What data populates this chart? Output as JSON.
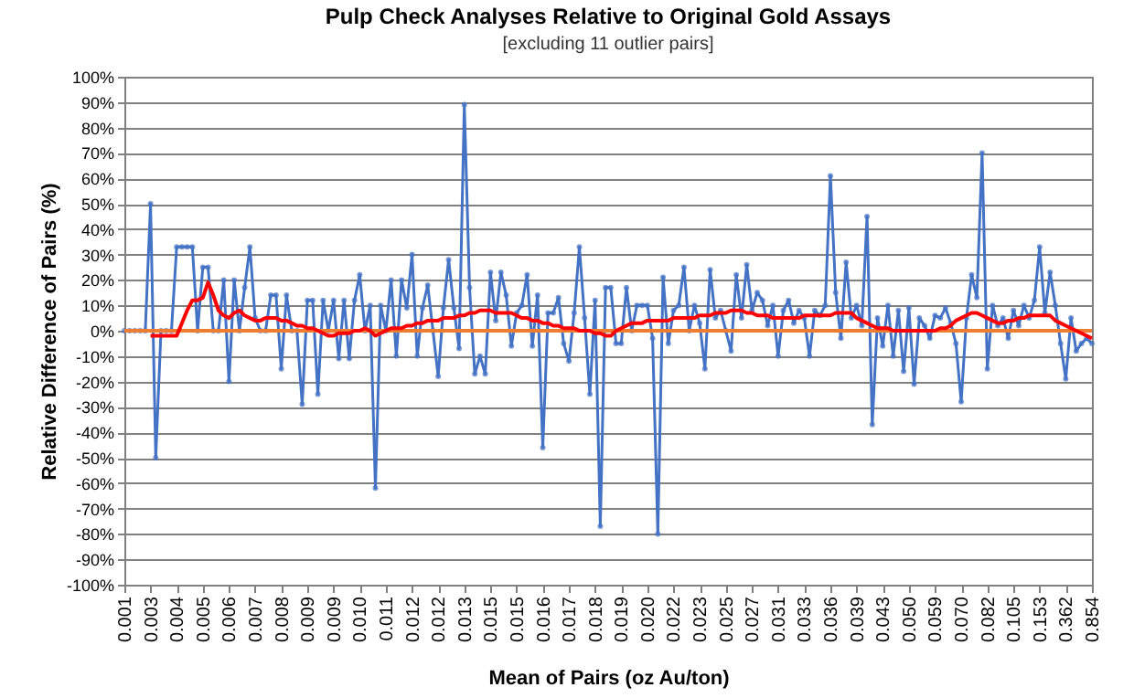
{
  "chart_data": {
    "type": "line",
    "title": "Pulp Check Analyses Relative to Original Gold Assays",
    "subtitle": "[excluding 11 outlier pairs]",
    "xlabel": "Mean of Pairs (oz Au/ton)",
    "ylabel": "Relative Difference of Pairs (%)",
    "categories": [
      "0.001",
      null,
      null,
      null,
      null,
      "0.003",
      null,
      null,
      null,
      null,
      "0.004",
      null,
      null,
      null,
      null,
      "0.005",
      null,
      null,
      null,
      null,
      "0.006",
      null,
      null,
      null,
      null,
      "0.007",
      null,
      null,
      null,
      null,
      "0.008",
      null,
      null,
      null,
      null,
      "0.009",
      null,
      null,
      null,
      null,
      "0.009",
      null,
      null,
      null,
      null,
      "0.010",
      null,
      null,
      null,
      null,
      "0.011",
      null,
      null,
      null,
      null,
      "0.012",
      null,
      null,
      null,
      null,
      "0.012",
      null,
      null,
      null,
      null,
      "0.013",
      null,
      null,
      null,
      null,
      "0.015",
      null,
      null,
      null,
      null,
      "0.015",
      null,
      null,
      null,
      null,
      "0.016",
      null,
      null,
      null,
      null,
      "0.017",
      null,
      null,
      null,
      null,
      "0.018",
      null,
      null,
      null,
      null,
      "0.019",
      null,
      null,
      null,
      null,
      "0.020",
      null,
      null,
      null,
      null,
      "0.022",
      null,
      null,
      null,
      null,
      "0.023",
      null,
      null,
      null,
      null,
      "0.025",
      null,
      null,
      null,
      null,
      "0.027",
      null,
      null,
      null,
      null,
      "0.031",
      null,
      null,
      null,
      null,
      "0.033",
      null,
      null,
      null,
      null,
      "0.036",
      null,
      null,
      null,
      null,
      "0.039",
      null,
      null,
      null,
      null,
      "0.043",
      null,
      null,
      null,
      null,
      "0.050",
      null,
      null,
      null,
      null,
      "0.059",
      null,
      null,
      null,
      null,
      "0.070",
      null,
      null,
      null,
      null,
      "0.082",
      null,
      null,
      null,
      null,
      "0.105",
      null,
      null,
      null,
      null,
      "0.153",
      null,
      null,
      null,
      null,
      "0.362",
      null,
      null,
      null,
      null,
      "0.854"
    ],
    "series": [
      {
        "color": "#4472c4",
        "values": [
          0,
          0,
          0,
          0,
          0,
          50,
          -50,
          0,
          0,
          0,
          33,
          33,
          33,
          33,
          0,
          25,
          25,
          0,
          0,
          20,
          -20,
          20,
          0,
          17,
          33,
          5,
          0,
          0,
          14,
          14,
          -15,
          14,
          0,
          0,
          -29,
          12,
          12,
          -25,
          12,
          0,
          12,
          -11,
          12,
          -11,
          12,
          22,
          0,
          10,
          -62,
          10,
          0,
          20,
          -10,
          20,
          9,
          30,
          -10,
          9,
          18,
          0,
          -18,
          9,
          28,
          9,
          -7,
          89,
          17,
          -17,
          -10,
          -17,
          23,
          4,
          23,
          14,
          -6,
          7,
          10,
          22,
          -6,
          14,
          -46,
          7,
          7,
          13,
          -5,
          -12,
          7,
          33,
          5,
          -25,
          12,
          -77,
          17,
          17,
          -5,
          -5,
          17,
          0,
          10,
          10,
          10,
          -3,
          -80,
          21,
          -5,
          8,
          10,
          25,
          0,
          10,
          3,
          -15,
          24,
          5,
          8,
          0,
          -8,
          22,
          5,
          26,
          8,
          15,
          12,
          2,
          10,
          -10,
          8,
          12,
          3,
          8,
          5,
          -10,
          8,
          6,
          10,
          61,
          15,
          -3,
          27,
          5,
          10,
          2,
          45,
          -37,
          5,
          -6,
          10,
          -10,
          8,
          -16,
          9,
          -21,
          5,
          2,
          -3,
          6,
          5,
          9,
          3,
          -5,
          -28,
          5,
          22,
          13,
          70,
          -15,
          10,
          2,
          5,
          -3,
          8,
          2,
          10,
          5,
          12,
          33,
          7,
          23,
          10,
          -5,
          -19,
          5,
          -8,
          -5,
          -3,
          -5
        ]
      },
      {
        "color": "#ff0000",
        "marker": "none",
        "values": [
          null,
          null,
          null,
          null,
          null,
          -2,
          -2,
          -2,
          -2,
          -2,
          -2,
          3,
          8,
          12,
          12,
          13,
          19,
          14,
          8,
          6,
          5,
          7,
          8,
          6,
          5,
          4,
          4,
          5,
          5,
          5,
          4,
          4,
          3,
          2,
          2,
          1,
          1,
          0,
          -1,
          -2,
          -2,
          -1,
          -1,
          -1,
          0,
          0,
          1,
          0,
          -2,
          -1,
          0,
          1,
          1,
          1,
          2,
          2,
          3,
          3,
          4,
          4,
          4,
          5,
          5,
          5,
          6,
          6,
          7,
          7,
          8,
          8,
          8,
          7,
          7,
          7,
          7,
          6,
          5,
          5,
          4,
          4,
          3,
          3,
          2,
          2,
          1,
          1,
          1,
          0,
          0,
          0,
          -1,
          -1,
          -2,
          -2,
          0,
          1,
          2,
          3,
          3,
          3,
          4,
          4,
          4,
          4,
          4,
          5,
          5,
          5,
          5,
          5,
          6,
          6,
          6,
          7,
          7,
          7,
          8,
          8,
          8,
          7,
          7,
          6,
          6,
          6,
          5,
          5,
          5,
          5,
          5,
          5,
          6,
          6,
          6,
          6,
          6,
          6,
          7,
          7,
          7,
          7,
          5,
          4,
          3,
          2,
          1,
          1,
          1,
          0,
          0,
          0,
          0,
          0,
          0,
          0,
          0,
          0,
          1,
          1,
          2,
          4,
          5,
          6,
          7,
          7,
          6,
          5,
          4,
          3,
          3,
          4,
          4,
          5,
          5,
          6,
          6,
          6,
          6,
          6,
          4,
          3,
          2,
          1,
          0,
          -1,
          -2,
          -3
        ]
      }
    ],
    "ylim": [
      -100,
      100
    ],
    "yticks": [
      {
        "value": -100,
        "label": "-100%"
      },
      {
        "value": -90,
        "label": "-90%"
      },
      {
        "value": -80,
        "label": "-80%"
      },
      {
        "value": -70,
        "label": "-70%"
      },
      {
        "value": -60,
        "label": "-60%"
      },
      {
        "value": -50,
        "label": "-50%"
      },
      {
        "value": -40,
        "label": "-40%"
      },
      {
        "value": -30,
        "label": "-30%"
      },
      {
        "value": -20,
        "label": "-20%"
      },
      {
        "value": -10,
        "label": "-10%"
      },
      {
        "value": 0,
        "label": "0%"
      },
      {
        "value": 10,
        "label": "10%"
      },
      {
        "value": 20,
        "label": "20%"
      },
      {
        "value": 30,
        "label": "30%"
      },
      {
        "value": 40,
        "label": "40%"
      },
      {
        "value": 50,
        "label": "50%"
      },
      {
        "value": 60,
        "label": "60%"
      },
      {
        "value": 70,
        "label": "70%"
      },
      {
        "value": 80,
        "label": "80%"
      },
      {
        "value": 90,
        "label": "90%"
      },
      {
        "value": 100,
        "label": "100%"
      }
    ],
    "ref_lines": [
      {
        "axis": "y",
        "value": 0,
        "color": "#ed7d31"
      }
    ],
    "grid": "y",
    "marker": "circle",
    "line_style": "solid"
  }
}
